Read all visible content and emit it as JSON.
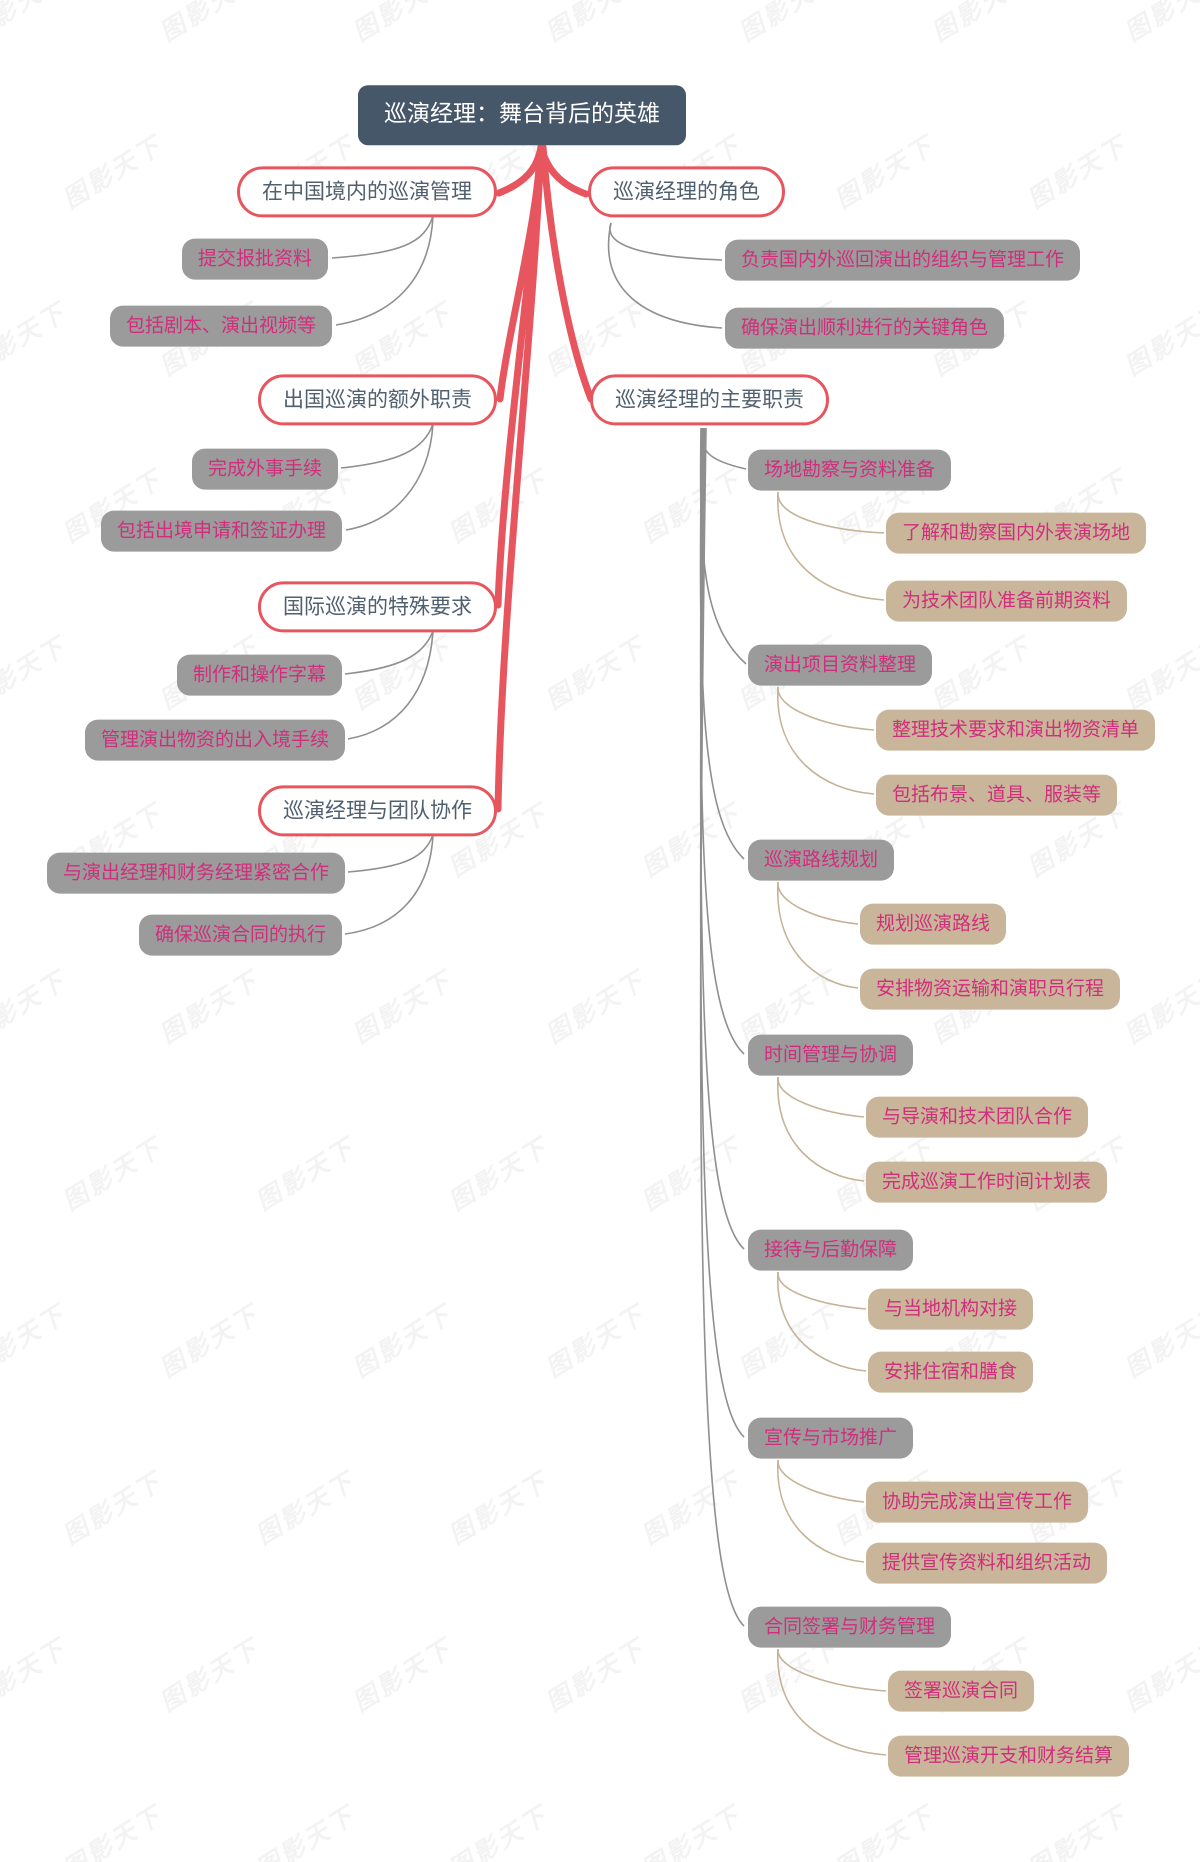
{
  "root": {
    "label": "巡演经理：舞台背后的英雄"
  },
  "watermark": {
    "text": "图影天下"
  },
  "colors": {
    "root_bg": "#455769",
    "branch_border": "#e7555e",
    "branch_text": "#51606f",
    "level2_bg": "#9b9b9b",
    "level3_bg": "#c9b69a",
    "accent_text": "#d02e7c",
    "red_connector": "#e7555e",
    "gray_connector": "#8f8f8f",
    "tan_connector": "#c5b397"
  },
  "branches": [
    {
      "label": "在中国境内的巡演管理",
      "side": "left",
      "children": [
        {
          "label": "提交报批资料"
        },
        {
          "label": "包括剧本、演出视频等"
        }
      ]
    },
    {
      "label": "巡演经理的角色",
      "side": "right",
      "children": [
        {
          "label": "负责国内外巡回演出的组织与管理工作"
        },
        {
          "label": "确保演出顺利进行的关键角色"
        }
      ]
    },
    {
      "label": "出国巡演的额外职责",
      "side": "left",
      "children": [
        {
          "label": "完成外事手续"
        },
        {
          "label": "包括出境申请和签证办理"
        }
      ]
    },
    {
      "label": "巡演经理的主要职责",
      "side": "right",
      "children": [
        {
          "label": "场地勘察与资料准备",
          "children": [
            "了解和勘察国内外表演场地",
            "为技术团队准备前期资料"
          ]
        },
        {
          "label": "演出项目资料整理",
          "children": [
            "整理技术要求和演出物资清单",
            "包括布景、道具、服装等"
          ]
        },
        {
          "label": "巡演路线规划",
          "children": [
            "规划巡演路线",
            "安排物资运输和演职员行程"
          ]
        },
        {
          "label": "时间管理与协调",
          "children": [
            "与导演和技术团队合作",
            "完成巡演工作时间计划表"
          ]
        },
        {
          "label": "接待与后勤保障",
          "children": [
            "与当地机构对接",
            "安排住宿和膳食"
          ]
        },
        {
          "label": "宣传与市场推广",
          "children": [
            "协助完成演出宣传工作",
            "提供宣传资料和组织活动"
          ]
        },
        {
          "label": "合同签署与财务管理",
          "children": [
            "签署巡演合同",
            "管理巡演开支和财务结算"
          ]
        }
      ]
    },
    {
      "label": "国际巡演的特殊要求",
      "side": "left",
      "children": [
        {
          "label": "制作和操作字幕"
        },
        {
          "label": "管理演出物资的出入境手续"
        }
      ]
    },
    {
      "label": "巡演经理与团队协作",
      "side": "left",
      "children": [
        {
          "label": "与演出经理和财务经理紧密合作"
        },
        {
          "label": "确保巡演合同的执行"
        }
      ]
    }
  ]
}
